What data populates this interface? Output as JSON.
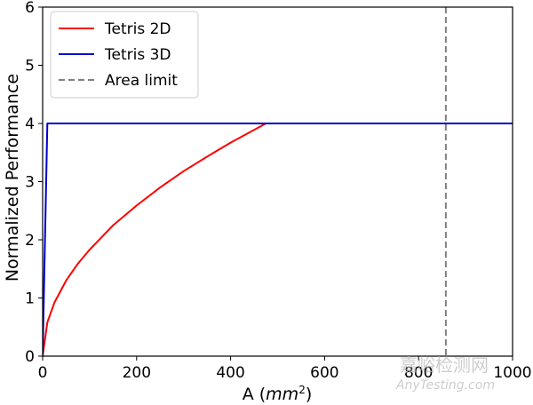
{
  "chart_data": {
    "type": "line",
    "xlabel": "A (mm²)",
    "xlabel_prefix": "A (",
    "xlabel_unit": "mm",
    "xlabel_exp": "2",
    "xlabel_suffix": ")",
    "ylabel": "Normalized Performance",
    "xlim": [
      0,
      1000
    ],
    "ylim": [
      0,
      6
    ],
    "xticks": [
      0,
      200,
      400,
      600,
      800,
      1000
    ],
    "yticks": [
      0,
      1,
      2,
      3,
      4,
      5,
      6
    ],
    "grid": false,
    "legend_position": "top-left",
    "series": [
      {
        "name": "Tetris 2D",
        "color": "#ff0000",
        "style": "solid",
        "x": [
          0,
          10,
          25,
          50,
          75,
          100,
          150,
          200,
          250,
          300,
          350,
          400,
          450,
          475,
          1000
        ],
        "y": [
          0,
          0.58,
          0.92,
          1.3,
          1.59,
          1.83,
          2.25,
          2.59,
          2.9,
          3.18,
          3.43,
          3.67,
          3.89,
          4.0,
          4.0
        ]
      },
      {
        "name": "Tetris 3D",
        "color": "#0000cc",
        "style": "solid",
        "x": [
          0,
          10,
          1000
        ],
        "y": [
          0,
          4.0,
          4.0
        ]
      },
      {
        "name": "Area limit",
        "color": "#808080",
        "style": "dashed",
        "vertical_x": 858
      }
    ]
  },
  "watermark": {
    "cn": "嘉峪检测网",
    "en": "AnyTesting.com"
  }
}
